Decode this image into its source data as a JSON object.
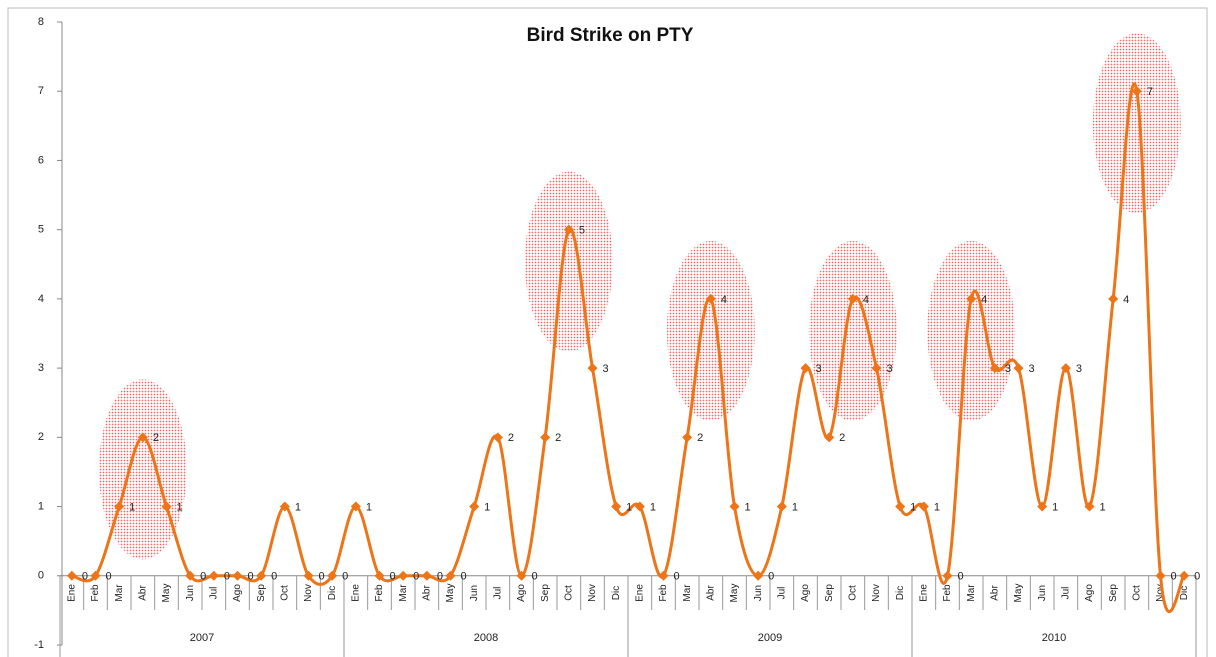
{
  "chart_data": {
    "type": "line",
    "title": "Bird Strike on PTY",
    "categories": [
      "Ene",
      "Feb",
      "Mar",
      "Abr",
      "May",
      "Jun",
      "Jul",
      "Ago",
      "Sep",
      "Oct",
      "Nov",
      "Dic",
      "Ene",
      "Feb",
      "Mar",
      "Abr",
      "May",
      "Jun",
      "Jul",
      "Ago",
      "Sep",
      "Oct",
      "Nov",
      "Dic",
      "Ene",
      "Feb",
      "Mar",
      "Abr",
      "May",
      "Jun",
      "Jul",
      "Ago",
      "Sep",
      "Oct",
      "Nov",
      "Dic",
      "Ene",
      "Feb",
      "Mar",
      "Abr",
      "May",
      "Jun",
      "Jul",
      "Ago",
      "Sep",
      "Oct",
      "Nov",
      "Dic"
    ],
    "groups": [
      "2007",
      "2008",
      "2009",
      "2010"
    ],
    "values": [
      0,
      0,
      1,
      2,
      1,
      0,
      0,
      0,
      0,
      1,
      0,
      0,
      1,
      0,
      0,
      0,
      0,
      1,
      2,
      0,
      2,
      5,
      3,
      1,
      1,
      0,
      2,
      4,
      1,
      0,
      1,
      3,
      2,
      4,
      3,
      1,
      1,
      0,
      4,
      3,
      3,
      1,
      3,
      1,
      4,
      7,
      0,
      0
    ],
    "color": "#ee7418",
    "highlight_color": "#e83a3a",
    "highlights": [
      3,
      21,
      27,
      33,
      38,
      45
    ],
    "ylim": [
      -1,
      8
    ],
    "yticks": [
      -1,
      0,
      1,
      2,
      3,
      4,
      5,
      6,
      7,
      8
    ],
    "grid": false
  }
}
